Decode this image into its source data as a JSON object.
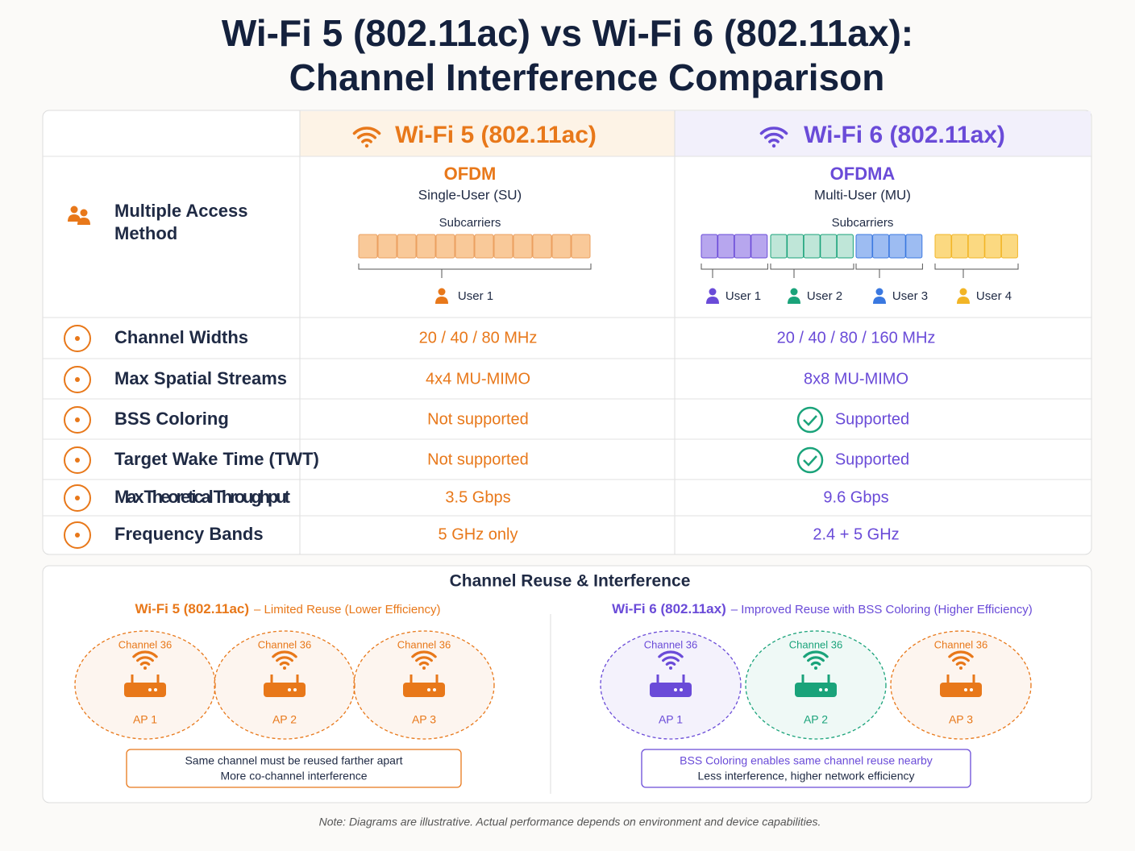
{
  "header": {
    "title_lines": [
      "Wi-Fi 5 (802.11ac) vs Wi-Fi 6 (802.11ax):",
      "Channel Interference Comparison"
    ]
  },
  "table": {
    "columns": [
      "Wi-Fi 5 (802.11ac)",
      "Wi-Fi 6 (802.11ax)"
    ],
    "access": {
      "label": "Multiple Access Method",
      "wifi5": {
        "method": "OFDM",
        "mode": "Single-User (SU)",
        "subcarriers": "Subcarriers",
        "users": [
          "User 1"
        ]
      },
      "wifi6": {
        "method": "OFDMA",
        "mode": "Multi-User (MU)",
        "subcarriers": "Subcarriers",
        "users": [
          "User 1",
          "User 2",
          "User 3",
          "User 4"
        ]
      }
    },
    "rows": [
      {
        "label": "Channel Widths",
        "wifi5": "20 / 40 / 80 MHz",
        "wifi6": "20 / 40 / 80 / 160 MHz"
      },
      {
        "label": "Max Spatial Streams",
        "wifi5": "4x4 MU-MIMO",
        "wifi6": "8x8 MU-MIMO"
      },
      {
        "label": "BSS Coloring",
        "wifi5": "Not supported",
        "wifi6": "Supported"
      },
      {
        "label": "Target Wake Time (TWT)",
        "wifi5": "Not supported",
        "wifi6": "Supported"
      },
      {
        "label": "Max Theoretical Throughput",
        "wifi5": "3.5 Gbps",
        "wifi6": "9.6 Gbps"
      },
      {
        "label": "Frequency Bands",
        "wifi5": "5 GHz only",
        "wifi6": "2.4 + 5 GHz"
      }
    ]
  },
  "reuse": {
    "title": "Channel Reuse & Interference",
    "wifi5": {
      "heading": "Wi-Fi 5 (802.11ac)",
      "subtitle": "– Limited Reuse (Lower Efficiency)",
      "aps": [
        {
          "channel": "Channel 36",
          "name": "AP 1"
        },
        {
          "channel": "Channel 36",
          "name": "AP 2"
        },
        {
          "channel": "Channel 36",
          "name": "AP 3"
        }
      ],
      "notes": [
        "Same channel must be reused farther apart",
        "More co-channel interference"
      ]
    },
    "wifi6": {
      "heading": "Wi-Fi 6 (802.11ax)",
      "subtitle": "– Improved Reuse with BSS Coloring (Higher Efficiency)",
      "aps": [
        {
          "channel": "Channel 36",
          "name": "AP 1"
        },
        {
          "channel": "Channel 36",
          "name": "AP 2"
        },
        {
          "channel": "Channel 36",
          "name": "AP 3"
        }
      ],
      "notes": [
        "BSS Coloring enables same channel reuse nearby",
        "Less interference, higher network efficiency"
      ]
    }
  },
  "note": "Note: Diagrams are illustrative. Actual performance depends on environment and device capabilities."
}
